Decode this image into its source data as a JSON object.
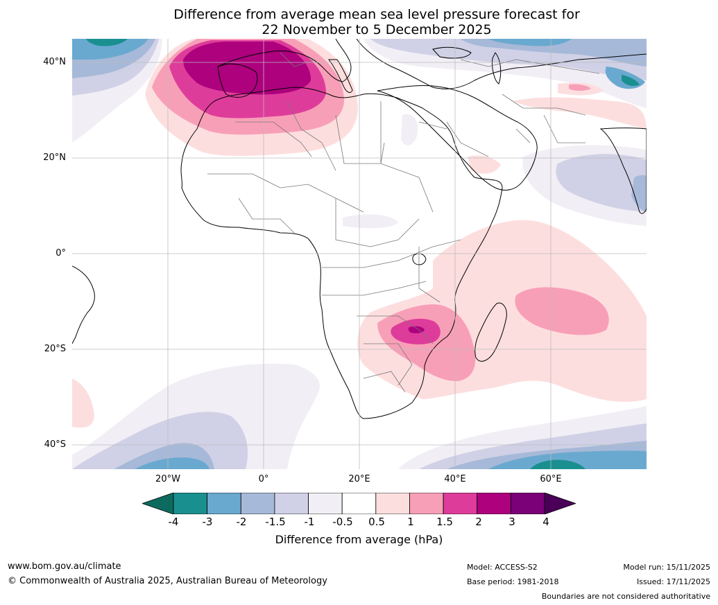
{
  "title_line1": "Difference from average mean sea level pressure forecast for",
  "title_line2": "22 November to 5 December 2025",
  "map": {
    "lat_labels": [
      "40°N",
      "20°N",
      "0°",
      "20°S",
      "40°S"
    ],
    "lon_labels": [
      "20°W",
      "0°",
      "20°E",
      "40°E",
      "60°E"
    ]
  },
  "colorbar": {
    "ticks": [
      "-4",
      "-3",
      "-2",
      "-1.5",
      "-1",
      "-0.5",
      "0.5",
      "1",
      "1.5",
      "2",
      "3",
      "4"
    ],
    "colors": [
      "#1a8f8f",
      "#6aa9cf",
      "#a7b9d8",
      "#d0d1e6",
      "#f1eef5",
      "#ffffff",
      "#fddede",
      "#f89fb8",
      "#de3c9a",
      "#ae017e",
      "#7a0177"
    ],
    "under_color": "#0c6b5e",
    "over_color": "#4a0058",
    "label": "Difference from average (hPa)"
  },
  "footer": {
    "website": "www.bom.gov.au/climate",
    "copyright": "© Commonwealth of Australia 2025, Australian Bureau of Meteorology",
    "model": "Model: ACCESS-S2",
    "base_period": "Base period: 1981-2018",
    "model_run": "Model run: 15/11/2025",
    "issued": "Issued: 17/11/2025",
    "disclaimer": "Boundaries are not considered authoritative"
  }
}
